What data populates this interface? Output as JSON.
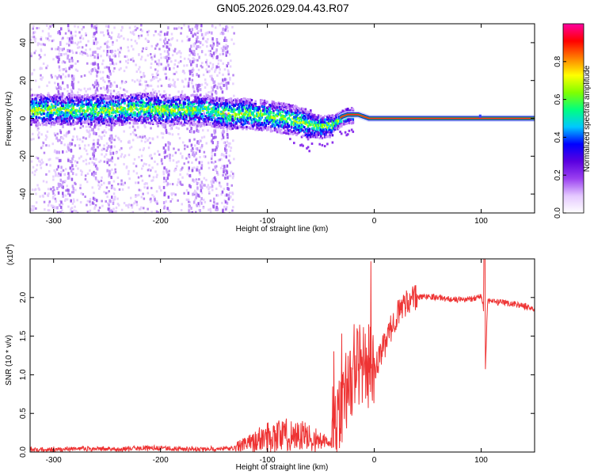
{
  "title": "GN05.2026.029.04.43.R07",
  "chart_data": [
    {
      "type": "heatmap",
      "xlabel": "Height of straight line (km)",
      "ylabel": "Frequency (Hz)",
      "xlim": [
        -322,
        150
      ],
      "ylim": [
        -50,
        50
      ],
      "x_ticks": [
        -300,
        -200,
        -100,
        0,
        100
      ],
      "x_tick_labels": [
        "-300",
        "-200",
        "-100",
        "0",
        "100"
      ],
      "y_ticks": [
        -40,
        -20,
        0,
        20,
        40
      ],
      "y_tick_labels": [
        "-40",
        "-20",
        "0",
        "20",
        "40"
      ],
      "colorbar": {
        "label": "Normalized spectral amplitude",
        "range": [
          0.0,
          1.0
        ],
        "ticks": [
          0.0,
          0.2,
          0.4,
          0.6,
          0.8
        ],
        "tick_labels": [
          "0.0",
          "0.2",
          "0.4",
          "0.6",
          "0.8"
        ],
        "colormap": [
          "#ffffff",
          "#e4c8ff",
          "#9a40f0",
          "#5a00e0",
          "#0000ff",
          "#00c8ff",
          "#00ff80",
          "#80ff00",
          "#ffff00",
          "#ff8000",
          "#ff0000",
          "#ff00a0"
        ]
      },
      "ridge": {
        "x": [
          -322,
          -300,
          -280,
          -260,
          -240,
          -220,
          -200,
          -180,
          -160,
          -140,
          -120,
          -100,
          -80,
          -60,
          -50,
          -40,
          -30,
          -25,
          -20,
          -15,
          -10,
          -5,
          0,
          50,
          100,
          150
        ],
        "y": [
          5,
          5,
          5,
          5,
          5,
          6,
          5,
          5,
          5,
          3,
          3,
          2,
          0,
          -3,
          -4,
          -3,
          1,
          2,
          2,
          2,
          1,
          0,
          0,
          0,
          0,
          0
        ]
      }
    },
    {
      "type": "line",
      "xlabel": "Height of straight line (km)",
      "ylabel": "SNR (10 * v/v)",
      "scale_label": "(x10",
      "scale_exp": "4",
      "scale_close": ")",
      "xlim": [
        -322,
        150
      ],
      "ylim": [
        0,
        2.5
      ],
      "x_ticks": [
        -300,
        -200,
        -100,
        0,
        100
      ],
      "x_tick_labels": [
        "-300",
        "-200",
        "-100",
        "0",
        "100"
      ],
      "y_ticks": [
        0.0,
        0.5,
        1.0,
        1.5,
        2.0
      ],
      "y_tick_labels": [
        "0.0",
        "0.5",
        "1.0",
        "1.5",
        "2.0"
      ],
      "series": [
        {
          "color": "#ee3333",
          "x": [
            -322,
            -300,
            -280,
            -260,
            -240,
            -220,
            -200,
            -180,
            -160,
            -140,
            -130,
            -120,
            -110,
            -100,
            -90,
            -80,
            -70,
            -60,
            -50,
            -40,
            -35,
            -30,
            -25,
            -20,
            -15,
            -10,
            -5,
            0,
            10,
            20,
            30,
            40,
            50,
            60,
            70,
            80,
            90,
            100,
            102,
            104,
            106,
            110,
            120,
            130,
            140,
            150
          ],
          "y": [
            0.03,
            0.03,
            0.04,
            0.04,
            0.04,
            0.05,
            0.05,
            0.04,
            0.04,
            0.04,
            0.06,
            0.1,
            0.15,
            0.2,
            0.22,
            0.22,
            0.22,
            0.18,
            0.14,
            0.1,
            0.25,
            0.6,
            0.9,
            1.0,
            1.1,
            1.2,
            1.1,
            1.05,
            1.4,
            1.75,
            1.95,
            2.0,
            2.02,
            2.0,
            1.98,
            1.97,
            1.98,
            2.02,
            1.9,
            1.05,
            1.95,
            1.95,
            1.93,
            1.92,
            1.89,
            1.85
          ]
        }
      ]
    }
  ]
}
